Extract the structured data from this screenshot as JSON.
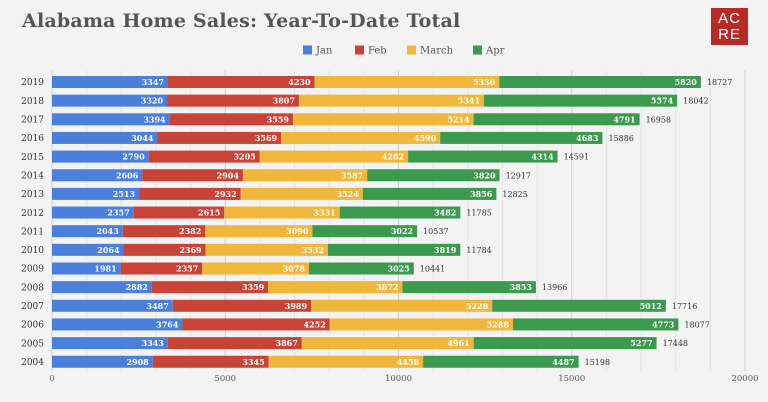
{
  "logo": {
    "line1": "AC",
    "line2": "RE"
  },
  "chart_data": {
    "type": "bar",
    "orientation": "horizontal",
    "stacked": true,
    "title": "Alabama Home Sales: Year-To-Date Total",
    "legend_position": "top",
    "xlim": [
      0,
      20000
    ],
    "x_ticks": [
      0,
      5000,
      10000,
      15000,
      20000
    ],
    "grid": true,
    "categories": [
      "2019",
      "2018",
      "2017",
      "2016",
      "2015",
      "2014",
      "2013",
      "2012",
      "2011",
      "2010",
      "2009",
      "2008",
      "2007",
      "2006",
      "2005",
      "2004"
    ],
    "series": [
      {
        "name": "Jan",
        "color": "#4a7fdc",
        "values": [
          3347,
          3320,
          3394,
          3044,
          2790,
          2606,
          2513,
          2357,
          2043,
          2064,
          1981,
          2882,
          3487,
          3764,
          3343,
          2908
        ]
      },
      {
        "name": "Feb",
        "color": "#c94336",
        "values": [
          4230,
          3807,
          3559,
          3569,
          3205,
          2904,
          2932,
          2615,
          2382,
          2369,
          2357,
          3359,
          3989,
          4252,
          3867,
          3345
        ]
      },
      {
        "name": "March",
        "color": "#f0b73a",
        "values": [
          5330,
          5341,
          5214,
          4590,
          4282,
          3587,
          3524,
          3331,
          3090,
          3532,
          3078,
          3872,
          5228,
          5288,
          4961,
          4458
        ]
      },
      {
        "name": "Apr",
        "color": "#3b9a4e",
        "values": [
          5820,
          5574,
          4791,
          4683,
          4314,
          3820,
          3856,
          3482,
          3022,
          3819,
          3025,
          3853,
          5012,
          4773,
          5277,
          4487
        ]
      }
    ],
    "totals": [
      18727,
      18042,
      16958,
      15886,
      14591,
      12917,
      12825,
      11785,
      10537,
      11784,
      10441,
      13966,
      17716,
      18077,
      17448,
      15198
    ]
  }
}
